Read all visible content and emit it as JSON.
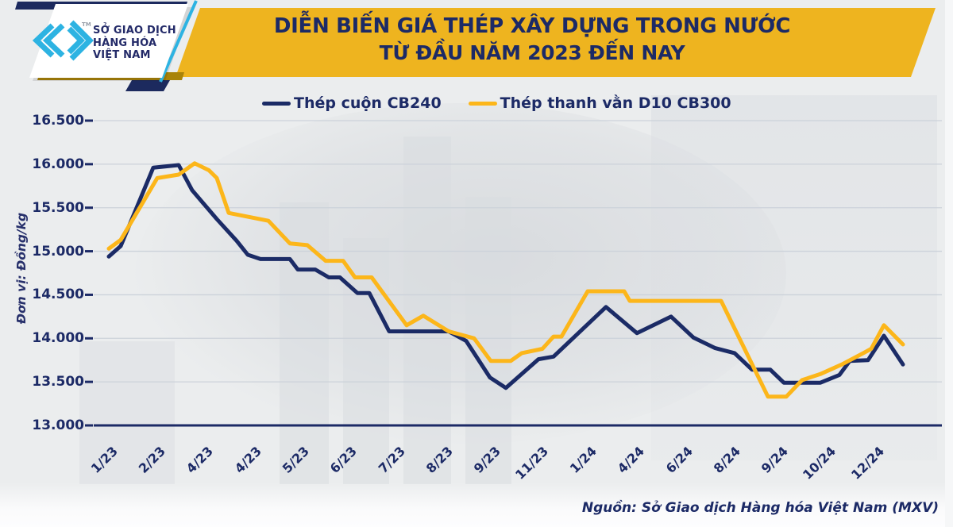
{
  "header": {
    "title_line1": "DIỄN BIẾN GIÁ THÉP XÂY DỰNG TRONG NƯỚC",
    "title_line2": "TỪ ĐẦU NĂM 2023 ĐẾN NAY",
    "logo": {
      "line1": "SỞ GIAO DỊCH",
      "line2": "HÀNG HÓA",
      "line3": "VIỆT NAM",
      "tm": "TM"
    }
  },
  "footer": {
    "source": "Nguồn: Sở Giao dịch Hàng hóa Việt Nam (MXV)"
  },
  "colors": {
    "banner_yellow": "#eeb41f",
    "navy": "#1c2a66",
    "cyan": "#2db3e2",
    "gold_shadow": "#a98309",
    "background": "#ebedee"
  },
  "chart_data": {
    "type": "line",
    "title": "DIỄN BIẾN GIÁ THÉP XÂY DỰNG TRONG NƯỚC TỪ ĐẦU NĂM 2023 ĐẾN NAY",
    "xlabel": "",
    "ylabel": "Đơn vị: Đồng/kg",
    "ylim": [
      13000,
      16500
    ],
    "grid": true,
    "legend_position": "top",
    "colors": {
      "axis": "#1c2a66",
      "grid": "#ccd2da"
    },
    "y_ticks": [
      {
        "value": 16500,
        "label": "16.500"
      },
      {
        "value": 16000,
        "label": "16.000"
      },
      {
        "value": 15500,
        "label": "15.500"
      },
      {
        "value": 15000,
        "label": "15.000"
      },
      {
        "value": 14500,
        "label": "14.500"
      },
      {
        "value": 14000,
        "label": "14.000"
      },
      {
        "value": 13500,
        "label": "13.500"
      },
      {
        "value": 13000,
        "label": "13.000"
      }
    ],
    "x_tick_labels": [
      "1/23",
      "2/23",
      "4/23",
      "4/23",
      "5/23",
      "6/23",
      "7/23",
      "8/23",
      "9/23",
      "11/23",
      "1/24",
      "4/24",
      "6/24",
      "8/24",
      "9/24",
      "10/24",
      "12/24"
    ],
    "series": [
      {
        "name": "Thép cuộn CB240",
        "color": "#1b2b66",
        "points": [
          [
            0,
            14940
          ],
          [
            1.5,
            15060
          ],
          [
            5.6,
            15960
          ],
          [
            8.8,
            15990
          ],
          [
            10.5,
            15700
          ],
          [
            13.6,
            15370
          ],
          [
            16.1,
            15120
          ],
          [
            17.5,
            14960
          ],
          [
            19.1,
            14910
          ],
          [
            22.8,
            14910
          ],
          [
            23.8,
            14790
          ],
          [
            26,
            14790
          ],
          [
            27.7,
            14700
          ],
          [
            29.1,
            14700
          ],
          [
            31.3,
            14520
          ],
          [
            32.8,
            14520
          ],
          [
            35.3,
            14080
          ],
          [
            42.8,
            14080
          ],
          [
            45,
            13970
          ],
          [
            48,
            13550
          ],
          [
            50,
            13430
          ],
          [
            54.1,
            13760
          ],
          [
            56,
            13790
          ],
          [
            62.6,
            14360
          ],
          [
            66.5,
            14060
          ],
          [
            70.8,
            14250
          ],
          [
            73.6,
            14010
          ],
          [
            76.3,
            13890
          ],
          [
            78.8,
            13830
          ],
          [
            81,
            13640
          ],
          [
            83.3,
            13640
          ],
          [
            85,
            13490
          ],
          [
            89.6,
            13490
          ],
          [
            92,
            13580
          ],
          [
            93.3,
            13740
          ],
          [
            95.6,
            13750
          ],
          [
            97.6,
            14030
          ],
          [
            100,
            13700
          ]
        ]
      },
      {
        "name": "Thép thanh vằn D10 CB300",
        "color": "#fcb61a",
        "points": [
          [
            0,
            15030
          ],
          [
            1.5,
            15130
          ],
          [
            6.1,
            15840
          ],
          [
            8.8,
            15880
          ],
          [
            10.8,
            16010
          ],
          [
            12.6,
            15930
          ],
          [
            13.6,
            15840
          ],
          [
            15.1,
            15440
          ],
          [
            20.1,
            15350
          ],
          [
            22.8,
            15090
          ],
          [
            25,
            15070
          ],
          [
            27.3,
            14890
          ],
          [
            29.5,
            14890
          ],
          [
            31,
            14700
          ],
          [
            33.1,
            14700
          ],
          [
            37.5,
            14150
          ],
          [
            39.6,
            14260
          ],
          [
            42.8,
            14080
          ],
          [
            46,
            14000
          ],
          [
            48.1,
            13740
          ],
          [
            50.6,
            13740
          ],
          [
            52,
            13830
          ],
          [
            54.6,
            13880
          ],
          [
            56,
            14020
          ],
          [
            57,
            14020
          ],
          [
            60.3,
            14540
          ],
          [
            64.9,
            14540
          ],
          [
            65.6,
            14430
          ],
          [
            77.1,
            14430
          ],
          [
            83,
            13330
          ],
          [
            85.3,
            13330
          ],
          [
            87.3,
            13520
          ],
          [
            89.6,
            13590
          ],
          [
            92.3,
            13700
          ],
          [
            95,
            13830
          ],
          [
            96,
            13880
          ],
          [
            97.6,
            14150
          ],
          [
            100,
            13930
          ]
        ]
      }
    ]
  }
}
